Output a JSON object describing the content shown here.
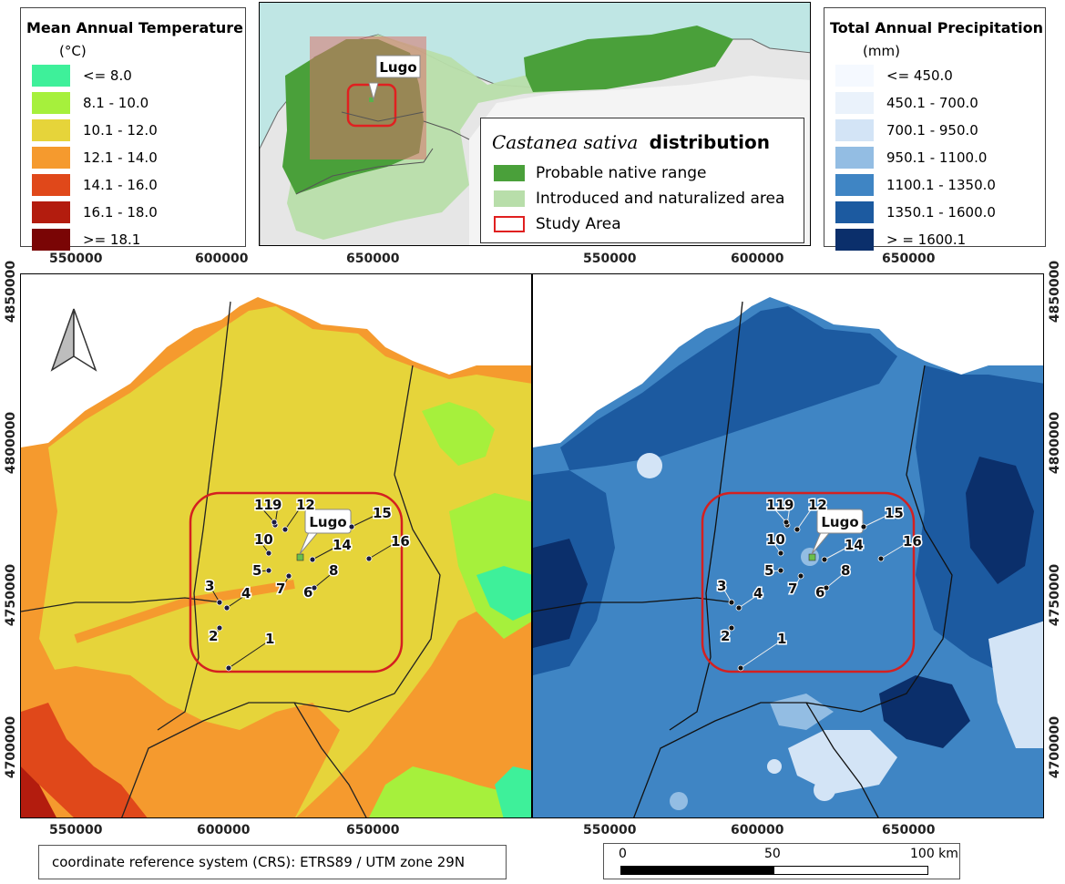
{
  "temperature_legend": {
    "title": "Mean Annual Temperature",
    "unit": "(°C)",
    "classes": [
      {
        "label": "<= 8.0",
        "color": "#3ef09a"
      },
      {
        "label": "8.1 - 10.0",
        "color": "#a6f03c"
      },
      {
        "label": "10.1 - 12.0",
        "color": "#e6d43a"
      },
      {
        "label": "12.1 - 14.0",
        "color": "#f59a2e"
      },
      {
        "label": "14.1 - 16.0",
        "color": "#e0481a"
      },
      {
        "label": "16.1 - 18.0",
        "color": "#b31c0e"
      },
      {
        "label": ">= 18.1",
        "color": "#7a0505"
      }
    ]
  },
  "precipitation_legend": {
    "title": "Total Annual Precipitation",
    "unit": "(mm)",
    "classes": [
      {
        "label": "<= 450.0",
        "color": "#f5f9ff"
      },
      {
        "label": "450.1 - 700.0",
        "color": "#eaf2fb"
      },
      {
        "label": "700.1 - 950.0",
        "color": "#d3e4f6"
      },
      {
        "label": "950.1 - 1100.0",
        "color": "#93bde3"
      },
      {
        "label": "1100.1 - 1350.0",
        "color": "#3f85c4"
      },
      {
        "label": "1350.1 - 1600.0",
        "color": "#1c5aa0"
      },
      {
        "label": "> = 1600.1",
        "color": "#0b2f6b"
      }
    ]
  },
  "inset": {
    "city_label": "Lugo",
    "legend_title_italic": "Castanea sativa",
    "legend_title_bold": "distribution",
    "items": [
      {
        "label": "Probable native range",
        "color": "#4aa03a"
      },
      {
        "label": "Introduced and naturalized area",
        "color": "#b8deaa"
      },
      {
        "label": "Study Area",
        "color": "#e02020"
      }
    ]
  },
  "axes": {
    "x_ticks_top_left": [
      "550000",
      "600000",
      "650000"
    ],
    "x_ticks_top_right": [
      "550000",
      "600000",
      "650000"
    ],
    "x_ticks_bottom_left": [
      "550000",
      "600000",
      "650000"
    ],
    "x_ticks_bottom_right": [
      "550000",
      "600000",
      "650000"
    ],
    "y_ticks_left": [
      "4850000",
      "4800000",
      "4750000",
      "4700000"
    ],
    "y_ticks_right": [
      "4850000",
      "4800000",
      "4750000",
      "4700000"
    ]
  },
  "map_labels": {
    "city": "Lugo",
    "sites": [
      "1",
      "2",
      "3",
      "4",
      "5",
      "6",
      "7",
      "8",
      "9",
      "10",
      "11",
      "12",
      "14",
      "15",
      "16"
    ]
  },
  "crs_text": "coordinate reference system (CRS): ETRS89 / UTM zone 29N",
  "scale_bar": {
    "label_0": "0",
    "label_mid": "50",
    "label_end": "100 km"
  }
}
